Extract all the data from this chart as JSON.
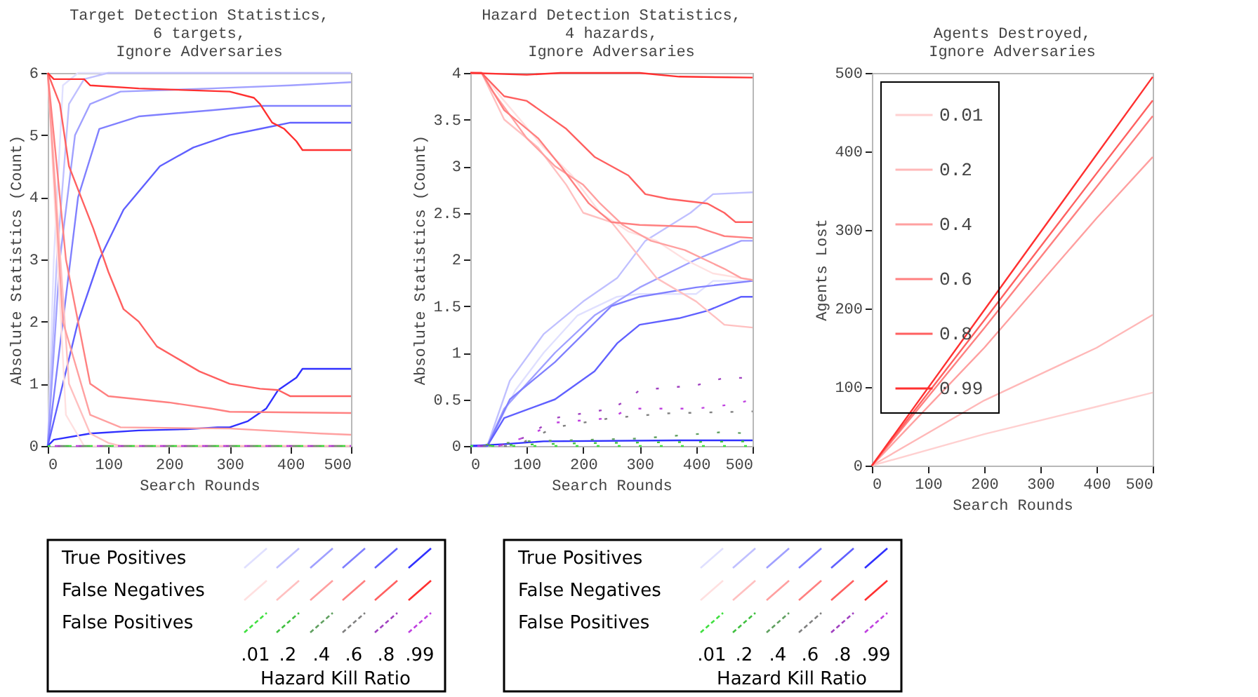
{
  "chart_data": [
    {
      "type": "line",
      "title": "Target Detection Statistics,\n6 targets,\nIgnore Adversaries",
      "xlabel": "Search Rounds",
      "ylabel": "Absolute Statistics (Count)",
      "xlim": [
        0,
        500
      ],
      "ylim": [
        0,
        6
      ],
      "xticks": [
        0,
        100,
        200,
        300,
        400,
        500
      ],
      "yticks": [
        0,
        1,
        2,
        3,
        4,
        5,
        6
      ],
      "grid": false,
      "line_style": "solid",
      "series": [
        {
          "color": "#e0e0ff",
          "x": [
            0,
            10,
            25,
            50,
            500
          ],
          "values": [
            0,
            3,
            5.8,
            6,
            6
          ]
        },
        {
          "color": "#c0c0ff",
          "x": [
            0,
            15,
            35,
            60,
            100,
            500
          ],
          "values": [
            0,
            3,
            5.5,
            5.9,
            6,
            6
          ]
        },
        {
          "color": "#a0a0ff",
          "x": [
            0,
            20,
            45,
            70,
            120,
            270,
            400,
            500
          ],
          "values": [
            0,
            3,
            5,
            5.5,
            5.7,
            5.75,
            5.8,
            5.85
          ]
        },
        {
          "color": "#8080ff",
          "x": [
            0,
            25,
            50,
            85,
            150,
            270,
            350,
            500
          ],
          "values": [
            0,
            2,
            4,
            5.1,
            5.3,
            5.4,
            5.47,
            5.47
          ]
        },
        {
          "color": "#6060ff",
          "x": [
            0,
            25,
            50,
            85,
            125,
            185,
            240,
            300,
            350,
            400,
            500
          ],
          "values": [
            0,
            1,
            2,
            3,
            3.8,
            4.5,
            4.8,
            5,
            5.1,
            5.2,
            5.2
          ]
        },
        {
          "color": "#3030ff",
          "x": [
            0,
            10,
            70,
            150,
            230,
            280,
            300,
            330,
            360,
            380,
            410,
            420,
            500
          ],
          "values": [
            0,
            0.1,
            0.2,
            0.25,
            0.27,
            0.3,
            0.3,
            0.4,
            0.6,
            0.9,
            1.1,
            1.24,
            1.24
          ]
        },
        {
          "color": "#ffe0e0",
          "x": [
            0,
            30,
            60,
            500
          ],
          "values": [
            6,
            0.5,
            0,
            0
          ]
        },
        {
          "color": "#ffc0c0",
          "x": [
            0,
            35,
            70,
            100,
            120,
            500
          ],
          "values": [
            6,
            1,
            0.2,
            0.05,
            0,
            0
          ]
        },
        {
          "color": "#ffa0a0",
          "x": [
            0,
            25,
            70,
            120,
            300,
            450,
            500
          ],
          "values": [
            6,
            2,
            0.5,
            0.3,
            0.28,
            0.2,
            0.18
          ]
        },
        {
          "color": "#ff8080",
          "x": [
            0,
            30,
            70,
            100,
            200,
            270,
            300,
            500
          ],
          "values": [
            6,
            3,
            1,
            0.8,
            0.7,
            0.6,
            0.55,
            0.53
          ]
        },
        {
          "color": "#ff6060",
          "x": [
            0,
            20,
            35,
            55,
            75,
            100,
            125,
            150,
            180,
            215,
            250,
            300,
            350,
            380,
            400,
            500
          ],
          "values": [
            6,
            5.5,
            4.5,
            4,
            3.5,
            2.8,
            2.2,
            2,
            1.6,
            1.4,
            1.2,
            1,
            0.92,
            0.9,
            0.8,
            0.8
          ]
        },
        {
          "color": "#ff3030",
          "x": [
            0,
            10,
            60,
            70,
            150,
            300,
            340,
            350,
            370,
            390,
            410,
            420,
            500
          ],
          "values": [
            6,
            5.9,
            5.9,
            5.8,
            5.75,
            5.7,
            5.6,
            5.5,
            5.2,
            5.1,
            4.9,
            4.76,
            4.76
          ]
        },
        {
          "color": "#40e040",
          "line_style": "dashed",
          "x": [
            0,
            500
          ],
          "values": [
            0,
            0
          ]
        },
        {
          "color": "#40c040",
          "line_style": "dashed",
          "x": [
            0,
            500
          ],
          "values": [
            0,
            0
          ]
        },
        {
          "color": "#60a060",
          "line_style": "dashed",
          "x": [
            0,
            500
          ],
          "values": [
            0,
            0
          ]
        },
        {
          "color": "#808080",
          "line_style": "dashed",
          "x": [
            0,
            500
          ],
          "values": [
            0,
            0
          ]
        },
        {
          "color": "#a040c0",
          "line_style": "dashed",
          "x": [
            0,
            500
          ],
          "values": [
            0,
            0
          ]
        },
        {
          "color": "#c040e0",
          "line_style": "dashed",
          "x": [
            0,
            500
          ],
          "values": [
            0,
            0
          ]
        }
      ]
    },
    {
      "type": "line",
      "title": "Hazard Detection Statistics,\n4 hazards,\nIgnore Adversaries",
      "xlabel": "Search Rounds",
      "ylabel": "Absolute Statistics (Count)",
      "xlim": [
        0,
        500
      ],
      "ylim": [
        0,
        4
      ],
      "xticks": [
        0,
        100,
        200,
        300,
        400,
        500
      ],
      "yticks": [
        0,
        0.5,
        1,
        1.5,
        2,
        2.5,
        3,
        3.5,
        4
      ],
      "grid": false,
      "line_style": "solid",
      "series": [
        {
          "color": "#e0e0ff",
          "x": [
            0,
            30,
            80,
            130,
            190,
            260,
            300,
            400,
            430,
            500
          ],
          "values": [
            0,
            0,
            0.6,
            1,
            1.4,
            1.6,
            1.63,
            1.63,
            1.77,
            1.77
          ]
        },
        {
          "color": "#c0c0ff",
          "x": [
            0,
            30,
            70,
            130,
            200,
            260,
            310,
            390,
            430,
            500
          ],
          "values": [
            0,
            0,
            0.7,
            1.2,
            1.55,
            1.8,
            2.2,
            2.5,
            2.7,
            2.72
          ]
        },
        {
          "color": "#a0a0ff",
          "x": [
            0,
            30,
            60,
            150,
            220,
            300,
            400,
            480,
            500
          ],
          "values": [
            0,
            0,
            0.4,
            1,
            1.4,
            1.7,
            2,
            2.2,
            2.2
          ]
        },
        {
          "color": "#8080ff",
          "x": [
            0,
            30,
            70,
            150,
            200,
            250,
            300,
            400,
            500
          ],
          "values": [
            0,
            0,
            0.5,
            0.9,
            1.2,
            1.5,
            1.6,
            1.7,
            1.77
          ]
        },
        {
          "color": "#6060ff",
          "x": [
            0,
            30,
            60,
            150,
            220,
            260,
            300,
            370,
            420,
            480,
            500
          ],
          "values": [
            0,
            0,
            0.3,
            0.5,
            0.8,
            1.1,
            1.3,
            1.37,
            1.45,
            1.6,
            1.6
          ]
        },
        {
          "color": "#3030ff",
          "x": [
            0,
            60,
            130,
            370,
            500
          ],
          "values": [
            0,
            0.02,
            0.05,
            0.06,
            0.06
          ]
        },
        {
          "color": "#ffe0e0",
          "x": [
            0,
            20,
            60,
            130,
            180,
            230,
            280,
            330,
            380,
            430,
            500
          ],
          "values": [
            4,
            4,
            3.7,
            3.2,
            2.9,
            2.5,
            2.3,
            2.2,
            2,
            1.85,
            1.78
          ]
        },
        {
          "color": "#ffc0c0",
          "x": [
            0,
            20,
            60,
            120,
            170,
            200,
            250,
            290,
            330,
            400,
            450,
            500
          ],
          "values": [
            4,
            4,
            3.5,
            3.2,
            2.8,
            2.5,
            2.4,
            2.1,
            1.8,
            1.55,
            1.3,
            1.27
          ]
        },
        {
          "color": "#ffa0a0",
          "x": [
            0,
            20,
            40,
            100,
            150,
            200,
            230,
            270,
            320,
            380,
            450,
            480,
            500
          ],
          "values": [
            4,
            4,
            3.8,
            3.3,
            3,
            2.8,
            2.6,
            2.37,
            2.2,
            2.1,
            1.9,
            1.8,
            1.78
          ]
        },
        {
          "color": "#ff8080",
          "x": [
            0,
            20,
            60,
            120,
            160,
            210,
            250,
            300,
            400,
            450,
            500
          ],
          "values": [
            4,
            4,
            3.6,
            3.3,
            3,
            2.6,
            2.4,
            2.37,
            2.35,
            2.25,
            2.23
          ]
        },
        {
          "color": "#ff6060",
          "x": [
            0,
            20,
            60,
            100,
            170,
            220,
            280,
            310,
            350,
            420,
            450,
            470,
            500
          ],
          "values": [
            4,
            4,
            3.75,
            3.7,
            3.4,
            3.1,
            2.9,
            2.7,
            2.65,
            2.6,
            2.5,
            2.4,
            2.4
          ]
        },
        {
          "color": "#ff3030",
          "x": [
            0,
            100,
            160,
            300,
            370,
            500
          ],
          "values": [
            4,
            3.98,
            4,
            4,
            3.96,
            3.95
          ]
        },
        {
          "color": "#40e040",
          "line_style": "dashed",
          "x": [
            0,
            500
          ],
          "values": [
            0,
            0
          ]
        },
        {
          "color": "#40c040",
          "line_style": "dashed",
          "x": [
            0,
            200,
            500
          ],
          "values": [
            0,
            0.03,
            0.05
          ]
        },
        {
          "color": "#60a060",
          "line_style": "dashed",
          "x": [
            0,
            100,
            300,
            450,
            500
          ],
          "values": [
            0,
            0.05,
            0.08,
            0.15,
            0.13
          ]
        },
        {
          "color": "#808080",
          "line_style": "dashed",
          "x": [
            0,
            80,
            150,
            250,
            350,
            500
          ],
          "values": [
            0,
            0,
            0.2,
            0.3,
            0.35,
            0.37
          ]
        },
        {
          "color": "#a040c0",
          "line_style": "dashed",
          "x": [
            0,
            50,
            100,
            150,
            250,
            280,
            300,
            400,
            450,
            500
          ],
          "values": [
            0,
            0,
            0.1,
            0.3,
            0.4,
            0.5,
            0.6,
            0.65,
            0.73,
            0.73
          ]
        },
        {
          "color": "#c040e0",
          "line_style": "dashed",
          "x": [
            0,
            50,
            100,
            150,
            250,
            280,
            400,
            470,
            500
          ],
          "values": [
            0,
            0,
            0.1,
            0.25,
            0.3,
            0.4,
            0.4,
            0.45,
            0.5
          ]
        }
      ]
    },
    {
      "type": "line",
      "title": "Agents Destroyed,\nIgnore Adversaries",
      "xlabel": "Search Rounds",
      "ylabel": "Agents Lost",
      "xlim": [
        0,
        500
      ],
      "ylim": [
        0,
        500
      ],
      "xticks": [
        0,
        100,
        200,
        300,
        400,
        500
      ],
      "yticks": [
        0,
        100,
        200,
        300,
        400,
        500
      ],
      "grid": false,
      "legend": "top left",
      "line_style": "solid",
      "series": [
        {
          "name": "0.01",
          "color": "#ffd0d0",
          "x": [
            0,
            200,
            400,
            500
          ],
          "values": [
            0,
            40,
            75,
            93
          ]
        },
        {
          "name": "0.2",
          "color": "#ffb8b8",
          "x": [
            0,
            200,
            400,
            500
          ],
          "values": [
            0,
            83,
            150,
            192
          ]
        },
        {
          "name": "0.4",
          "color": "#ffa0a0",
          "x": [
            0,
            200,
            400,
            500
          ],
          "values": [
            0,
            150,
            315,
            393
          ]
        },
        {
          "name": "0.6",
          "color": "#ff8080",
          "x": [
            0,
            200,
            400,
            500
          ],
          "values": [
            0,
            175,
            355,
            445
          ]
        },
        {
          "name": "0.8",
          "color": "#ff6060",
          "x": [
            0,
            200,
            400,
            500
          ],
          "values": [
            0,
            185,
            372,
            465
          ]
        },
        {
          "name": "0.99",
          "color": "#ff3030",
          "x": [
            0,
            200,
            400,
            500
          ],
          "values": [
            0,
            198,
            396,
            495
          ]
        }
      ]
    },
    {
      "type": "other",
      "legend_title": "Hazard Kill Ratio",
      "annotations": [
        "True Positives",
        "False Negatives",
        "False Positives",
        ".01",
        ".2",
        ".4",
        ".6",
        ".8",
        ".99"
      ]
    },
    {
      "type": "other",
      "legend_title": "Hazard Kill Ratio",
      "annotations": [
        "True Positives",
        "False Negatives",
        "False Positives",
        ".01",
        ".2",
        ".4",
        ".6",
        ".8",
        ".99"
      ]
    }
  ]
}
